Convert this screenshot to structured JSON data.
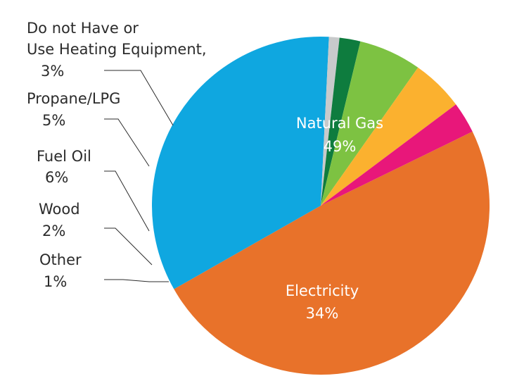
{
  "chart_data": {
    "type": "pie",
    "title": "",
    "slices": [
      {
        "name": "Natural Gas",
        "value": 49,
        "label": "49%",
        "color": "#E8722A"
      },
      {
        "name": "Electricity",
        "value": 34,
        "label": "34%",
        "color": "#0FA7E0"
      },
      {
        "name": "Other",
        "value": 1,
        "label": "1%",
        "color": "#C8CACB"
      },
      {
        "name": "Wood",
        "value": 2,
        "label": "2%",
        "color": "#0E7C3E"
      },
      {
        "name": "Fuel Oil",
        "value": 6,
        "label": "6%",
        "color": "#7DC242"
      },
      {
        "name": "Propane/LPG",
        "value": 5,
        "label": "5%",
        "color": "#FBB12F"
      },
      {
        "name": "Do not Have or Use Heating Equipment,",
        "value": 3,
        "label": "3%",
        "color": "#E8177A"
      }
    ],
    "outer_labels": [
      {
        "line1": "Do not Have or",
        "line2": "Use Heating Equipment,",
        "pct": "3%"
      },
      {
        "line1": "Propane/LPG",
        "line2": "",
        "pct": "5%"
      },
      {
        "line1": "Fuel Oil",
        "line2": "",
        "pct": "6%"
      },
      {
        "line1": "Wood",
        "line2": "",
        "pct": "2%"
      },
      {
        "line1": "Other",
        "line2": "",
        "pct": "1%"
      }
    ],
    "inner_labels": [
      {
        "line1": "Natural Gas",
        "pct": "49%"
      },
      {
        "line1": "Electricity",
        "pct": "34%"
      }
    ]
  }
}
